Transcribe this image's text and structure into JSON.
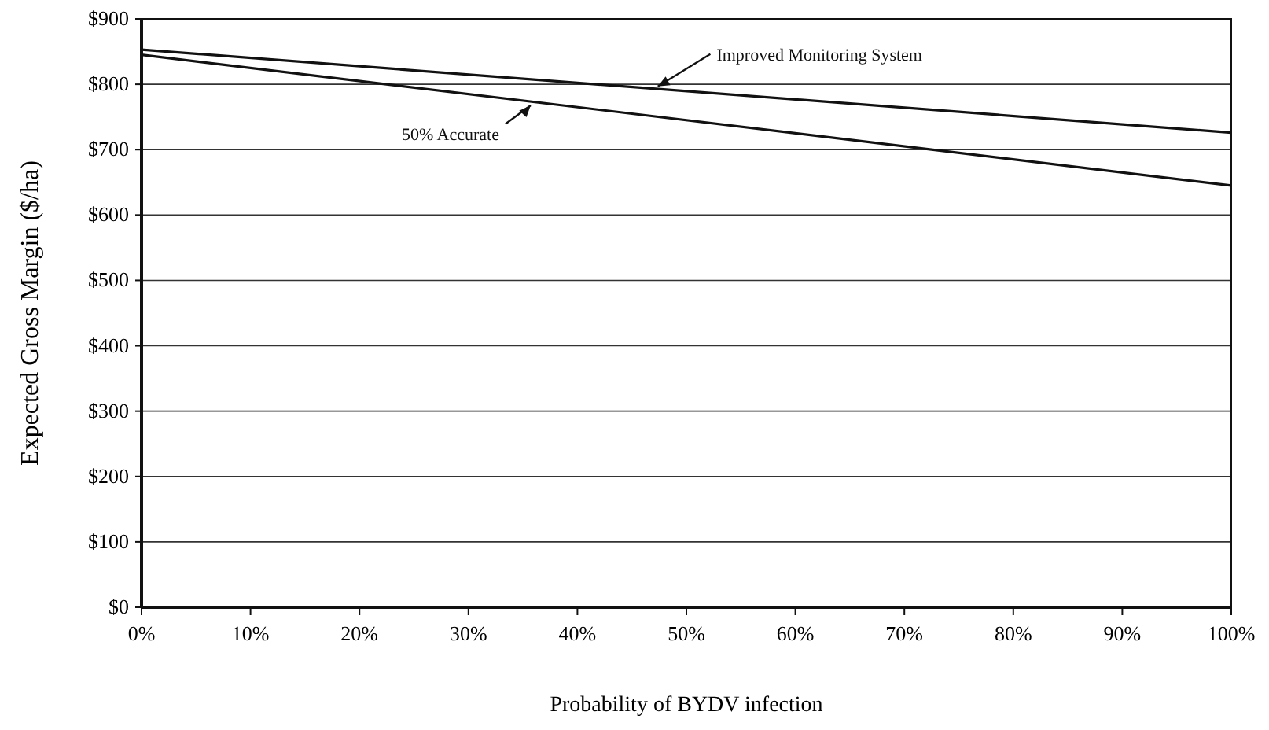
{
  "chart_data": {
    "type": "line",
    "xlabel": "Probability of BYDV infection",
    "ylabel": "Expected Gross Margin ($/ha)",
    "x": [
      0,
      100
    ],
    "series": [
      {
        "name": "Improved Monitoring System",
        "color": "#111111",
        "values": [
          853,
          726
        ]
      },
      {
        "name": "50% Accurate",
        "color": "#111111",
        "values": [
          845,
          645
        ]
      }
    ],
    "xlim": [
      0,
      100
    ],
    "xticks": [
      {
        "value": 0,
        "label": "0%"
      },
      {
        "value": 10,
        "label": "10%"
      },
      {
        "value": 20,
        "label": "20%"
      },
      {
        "value": 30,
        "label": "30%"
      },
      {
        "value": 40,
        "label": "40%"
      },
      {
        "value": 50,
        "label": "50%"
      },
      {
        "value": 60,
        "label": "60%"
      },
      {
        "value": 70,
        "label": "70%"
      },
      {
        "value": 80,
        "label": "80%"
      },
      {
        "value": 90,
        "label": "90%"
      },
      {
        "value": 100,
        "label": "100%"
      }
    ],
    "ylim": [
      0,
      900
    ],
    "yticks": [
      {
        "value": 0,
        "label": "$0"
      },
      {
        "value": 100,
        "label": "$100"
      },
      {
        "value": 200,
        "label": "$200"
      },
      {
        "value": 300,
        "label": "$300"
      },
      {
        "value": 400,
        "label": "$400"
      },
      {
        "value": 500,
        "label": "$500"
      },
      {
        "value": 600,
        "label": "$600"
      },
      {
        "value": 700,
        "label": "$700"
      },
      {
        "value": 800,
        "label": "$800"
      },
      {
        "value": 900,
        "label": "$900"
      }
    ],
    "grid": "y",
    "marker": "none",
    "line_style": "solid"
  }
}
